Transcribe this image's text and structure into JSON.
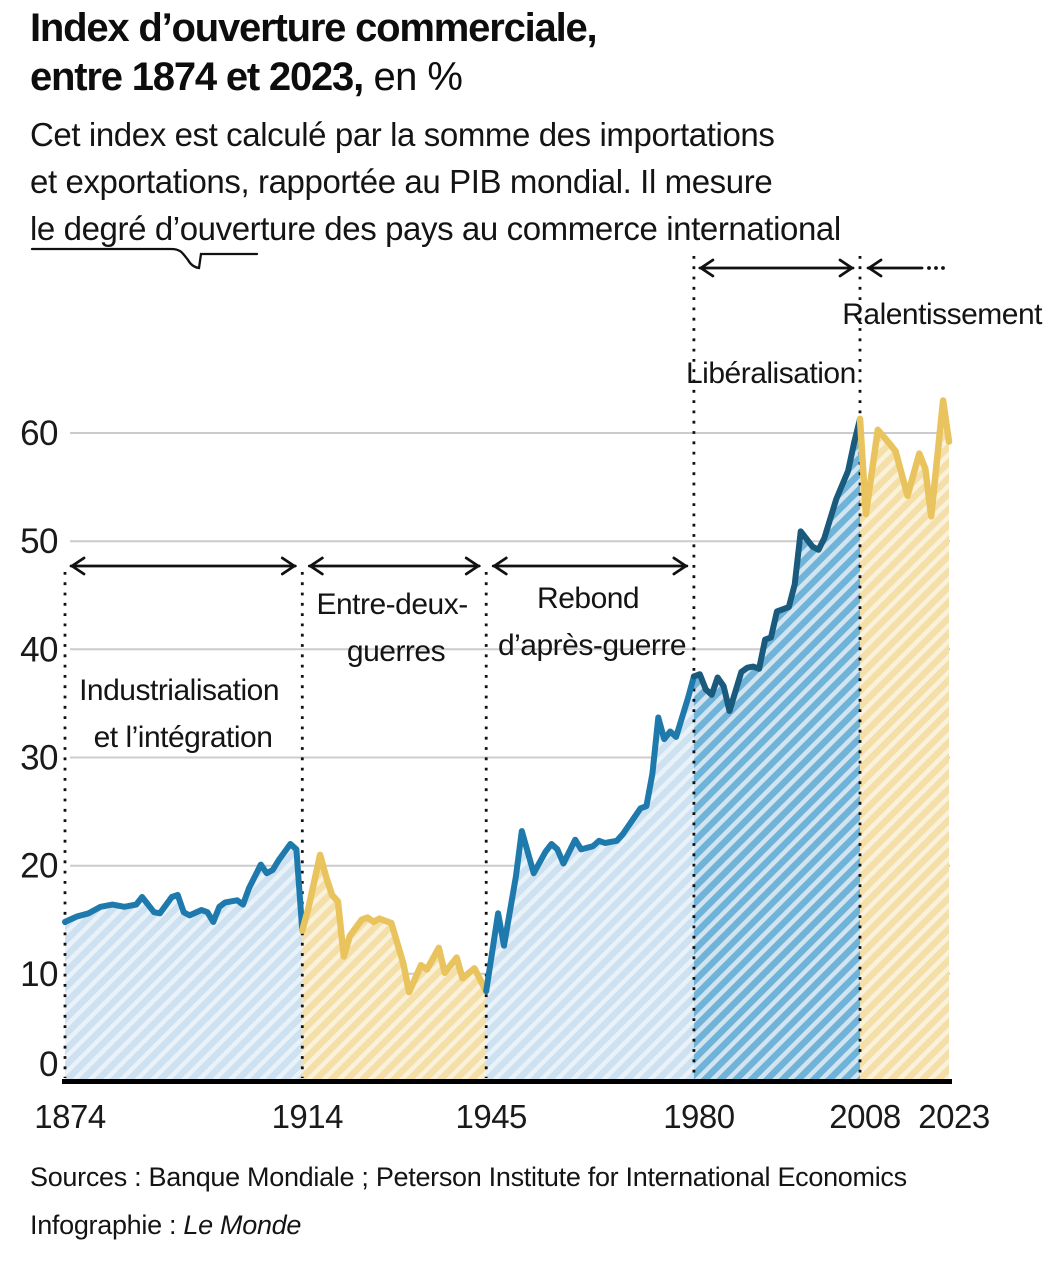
{
  "header": {
    "title_line1": "Index d’ouverture commerciale,",
    "title_line2_bold": "entre 1874 et 2023,",
    "title_line2_suffix": " en %",
    "subtitle_line1": "Cet index est calculé par la somme des importations",
    "subtitle_line2": "et exportations, rapportée au PIB mondial. Il mesure",
    "subtitle_line3": "le degré d’ouverture des pays  au commerce international"
  },
  "footer": {
    "sources": "Sources : Banque Mondiale ; Peterson Institute for International Economics",
    "credit_prefix": "Infographie : ",
    "credit_name": "Le Monde"
  },
  "chart_data": {
    "type": "area",
    "unit": "%",
    "x_axis": {
      "range": [
        1874,
        2023
      ],
      "ticks": [
        1874,
        1914,
        1945,
        1980,
        2008,
        2023
      ]
    },
    "y_axis": {
      "range": [
        0,
        64
      ],
      "ticks": [
        0,
        10,
        20,
        30,
        40,
        50,
        60
      ],
      "gridlines": true
    },
    "palette": {
      "text": "#141414",
      "gridline": "#cccccc",
      "axis_line": "#000000",
      "dotted_divider": "#111111",
      "blue_line": "#1e7aad",
      "dark_blue_line": "#1a5a7d",
      "yellow_line": "#e9c45e",
      "light_blue_fill": "#cde1f1",
      "light_blue_stripe": "#e9f1f9",
      "mid_blue_fill": "#6fb3d8",
      "mid_blue_stripe": "#d2e4f0",
      "yellow_fill": "#f3dfa7",
      "yellow_stripe": "#faf1da"
    },
    "periods": [
      {
        "name": "industrialisation",
        "label_line1": "Industrialisation",
        "label_line2": "et l’intégration",
        "start": 1874,
        "end": 1914,
        "line_color": "#1e7aad",
        "fill_base": "#cde1f1",
        "fill_stripe": "#e9f1f9",
        "points": [
          [
            1874,
            14.8
          ],
          [
            1876,
            15.3
          ],
          [
            1878,
            15.6
          ],
          [
            1880,
            16.2
          ],
          [
            1882,
            16.4
          ],
          [
            1884,
            16.2
          ],
          [
            1886,
            16.4
          ],
          [
            1887,
            17.1
          ],
          [
            1889,
            15.7
          ],
          [
            1890,
            15.6
          ],
          [
            1892,
            17.1
          ],
          [
            1893,
            17.3
          ],
          [
            1894,
            15.7
          ],
          [
            1895,
            15.4
          ],
          [
            1897,
            15.9
          ],
          [
            1898,
            15.7
          ],
          [
            1899,
            14.8
          ],
          [
            1900,
            16.2
          ],
          [
            1901,
            16.6
          ],
          [
            1903,
            16.8
          ],
          [
            1904,
            16.4
          ],
          [
            1905,
            17.9
          ],
          [
            1907,
            20.1
          ],
          [
            1908,
            19.3
          ],
          [
            1909,
            19.6
          ],
          [
            1910,
            20.5
          ],
          [
            1912,
            22.0
          ],
          [
            1913,
            21.5
          ],
          [
            1914,
            14.0
          ]
        ]
      },
      {
        "name": "entre-deux-guerres",
        "label_line1": "Entre-deux-",
        "label_line2": "guerres",
        "start": 1914,
        "end": 1945,
        "line_color": "#e9c45e",
        "fill_base": "#f3dfa7",
        "fill_stripe": "#faf1da",
        "points": [
          [
            1914,
            14.0
          ],
          [
            1915,
            16.0
          ],
          [
            1917,
            21.0
          ],
          [
            1918,
            19.0
          ],
          [
            1919,
            17.3
          ],
          [
            1920,
            16.7
          ],
          [
            1921,
            11.6
          ],
          [
            1922,
            13.5
          ],
          [
            1924,
            15.0
          ],
          [
            1925,
            15.2
          ],
          [
            1926,
            14.8
          ],
          [
            1927,
            15.1
          ],
          [
            1929,
            14.7
          ],
          [
            1931,
            11.0
          ],
          [
            1932,
            8.3
          ],
          [
            1934,
            10.8
          ],
          [
            1935,
            10.4
          ],
          [
            1937,
            12.4
          ],
          [
            1938,
            10.1
          ],
          [
            1940,
            11.5
          ],
          [
            1941,
            9.6
          ],
          [
            1943,
            10.5
          ],
          [
            1945,
            8.4
          ]
        ]
      },
      {
        "name": "rebond-apres-guerre",
        "label_line1": "Rebond",
        "label_line2": "d’après-guerre",
        "start": 1945,
        "end": 1980,
        "line_color": "#1e7aad",
        "fill_base": "#cde1f1",
        "fill_stripe": "#e9f1f9",
        "points": [
          [
            1945,
            8.4
          ],
          [
            1947,
            15.6
          ],
          [
            1948,
            12.6
          ],
          [
            1950,
            19.0
          ],
          [
            1951,
            23.2
          ],
          [
            1953,
            19.3
          ],
          [
            1955,
            21.3
          ],
          [
            1956,
            22.0
          ],
          [
            1957,
            21.5
          ],
          [
            1958,
            20.2
          ],
          [
            1960,
            22.4
          ],
          [
            1961,
            21.5
          ],
          [
            1963,
            21.8
          ],
          [
            1964,
            22.3
          ],
          [
            1965,
            22.1
          ],
          [
            1967,
            22.3
          ],
          [
            1968,
            22.9
          ],
          [
            1970,
            24.5
          ],
          [
            1971,
            25.3
          ],
          [
            1972,
            25.5
          ],
          [
            1973,
            28.5
          ],
          [
            1974,
            33.7
          ],
          [
            1975,
            31.7
          ],
          [
            1976,
            32.4
          ],
          [
            1977,
            31.9
          ],
          [
            1979,
            35.5
          ],
          [
            1980,
            37.5
          ]
        ]
      },
      {
        "name": "liberalisation",
        "label_line1": "Libéralisation",
        "label_line2": "",
        "start": 1980,
        "end": 2008,
        "line_color": "#1a5a7d",
        "fill_base": "#6fb3d8",
        "fill_stripe": "#d2e4f0",
        "points": [
          [
            1980,
            37.5
          ],
          [
            1981,
            37.7
          ],
          [
            1982,
            36.3
          ],
          [
            1983,
            35.8
          ],
          [
            1984,
            37.4
          ],
          [
            1985,
            36.6
          ],
          [
            1986,
            34.3
          ],
          [
            1988,
            37.9
          ],
          [
            1989,
            38.3
          ],
          [
            1990,
            38.4
          ],
          [
            1991,
            38.2
          ],
          [
            1992,
            40.9
          ],
          [
            1993,
            41.1
          ],
          [
            1994,
            43.5
          ],
          [
            1996,
            43.9
          ],
          [
            1997,
            46.0
          ],
          [
            1998,
            50.9
          ],
          [
            2000,
            49.5
          ],
          [
            2001,
            49.2
          ],
          [
            2002,
            50.3
          ],
          [
            2004,
            53.9
          ],
          [
            2006,
            56.5
          ],
          [
            2007,
            59.1
          ],
          [
            2008,
            61.3
          ]
        ]
      },
      {
        "name": "ralentissement",
        "label_line1": "Ralentissement",
        "label_line2": "",
        "start": 2008,
        "end": 2023,
        "line_color": "#e9c45e",
        "fill_base": "#f3dfa7",
        "fill_stripe": "#faf1da",
        "points": [
          [
            2008,
            61.3
          ],
          [
            2009,
            52.5
          ],
          [
            2011,
            60.3
          ],
          [
            2013,
            59.0
          ],
          [
            2014,
            58.3
          ],
          [
            2016,
            54.2
          ],
          [
            2018,
            58.1
          ],
          [
            2019,
            56.7
          ],
          [
            2020,
            52.3
          ],
          [
            2022,
            63.0
          ],
          [
            2023,
            59.2
          ]
        ]
      }
    ]
  }
}
